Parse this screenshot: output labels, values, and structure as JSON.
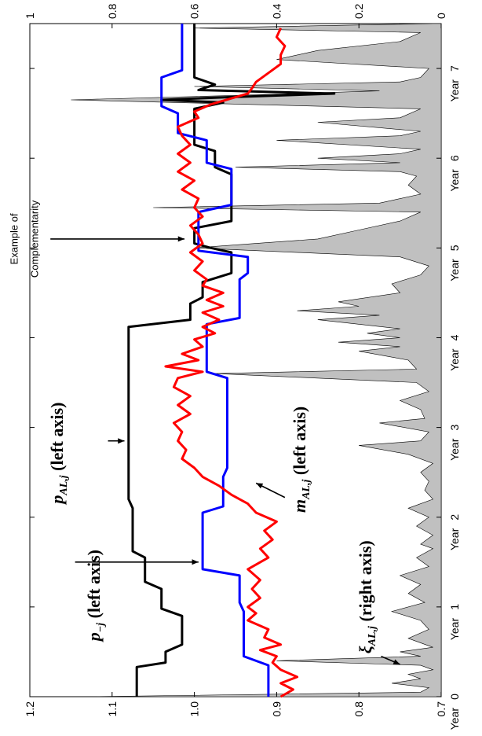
{
  "chart_data": {
    "type": "line",
    "orientation": "rotated-90-ccw",
    "x": {
      "ticks": [
        0,
        1,
        2,
        3,
        4,
        5,
        6,
        7
      ],
      "tick_labels": [
        "0",
        "1",
        "2",
        "3",
        "4",
        "5",
        "6",
        "7"
      ],
      "tick_prefix": "Year",
      "range": [
        0,
        7.5
      ]
    },
    "y_left": {
      "range": [
        0.7,
        1.2
      ],
      "ticks": [
        0.7,
        0.8,
        0.9,
        1.0,
        1.1,
        1.2
      ],
      "tick_labels": [
        "0.7",
        "0.8",
        "0.9",
        "1.0",
        "1.1",
        "1.2"
      ]
    },
    "y_right": {
      "range": [
        0,
        1
      ],
      "ticks": [
        0,
        0.2,
        0.4,
        0.6,
        0.8,
        1
      ],
      "tick_labels": [
        "0",
        "0.2",
        "0.4",
        "0.6",
        "0.8",
        "1"
      ]
    },
    "series": [
      {
        "id": "p_AL",
        "axis": "left",
        "color": "#000000",
        "style": "step-line",
        "points": [
          [
            0,
            1.07
          ],
          [
            0.33,
            1.07
          ],
          [
            0.38,
            1.035
          ],
          [
            0.5,
            1.035
          ],
          [
            0.58,
            1.015
          ],
          [
            0.9,
            1.015
          ],
          [
            0.98,
            1.04
          ],
          [
            1.2,
            1.04
          ],
          [
            1.28,
            1.06
          ],
          [
            1.55,
            1.06
          ],
          [
            1.62,
            1.075
          ],
          [
            2.1,
            1.075
          ],
          [
            2.2,
            1.08
          ],
          [
            3.0,
            1.08
          ],
          [
            4.12,
            1.08
          ],
          [
            4.2,
            1.005
          ],
          [
            4.38,
            1.005
          ],
          [
            4.45,
            0.99
          ],
          [
            4.62,
            0.99
          ],
          [
            4.72,
            0.955
          ],
          [
            4.95,
            0.955
          ],
          [
            5.0,
            0.98
          ],
          [
            5.05,
            1.0
          ],
          [
            5.22,
            1.0
          ],
          [
            5.3,
            0.955
          ],
          [
            5.82,
            0.955
          ],
          [
            5.9,
            0.975
          ],
          [
            6.08,
            0.975
          ],
          [
            6.15,
            1.0
          ],
          [
            6.55,
            1.0
          ],
          [
            6.62,
            0.965
          ],
          [
            6.65,
            1.04
          ],
          [
            6.68,
            0.96
          ],
          [
            6.72,
            0.83
          ],
          [
            6.76,
            0.995
          ],
          [
            6.82,
            0.975
          ],
          [
            6.9,
            1.0
          ],
          [
            7.5,
            1.0
          ]
        ]
      },
      {
        "id": "p_minus_j",
        "axis": "left",
        "color": "#0000ff",
        "style": "step-line",
        "points": [
          [
            0,
            0.91
          ],
          [
            0.35,
            0.91
          ],
          [
            0.45,
            0.94
          ],
          [
            0.95,
            0.94
          ],
          [
            1.05,
            0.945
          ],
          [
            1.35,
            0.945
          ],
          [
            1.42,
            0.99
          ],
          [
            2.05,
            0.99
          ],
          [
            2.12,
            0.965
          ],
          [
            2.45,
            0.965
          ],
          [
            2.55,
            0.96
          ],
          [
            3.55,
            0.96
          ],
          [
            3.62,
            0.985
          ],
          [
            4.15,
            0.985
          ],
          [
            4.22,
            0.945
          ],
          [
            4.65,
            0.945
          ],
          [
            4.72,
            0.935
          ],
          [
            4.9,
            0.935
          ],
          [
            4.97,
            0.995
          ],
          [
            5.4,
            0.995
          ],
          [
            5.48,
            0.955
          ],
          [
            5.88,
            0.955
          ],
          [
            5.95,
            0.985
          ],
          [
            6.2,
            0.985
          ],
          [
            6.28,
            1.02
          ],
          [
            6.5,
            1.02
          ],
          [
            6.58,
            1.04
          ],
          [
            6.9,
            1.04
          ],
          [
            6.98,
            1.015
          ],
          [
            7.5,
            1.015
          ]
        ]
      },
      {
        "id": "m_AL",
        "axis": "left",
        "color": "#ff0000",
        "style": "line",
        "points": [
          [
            0,
            0.895
          ],
          [
            0.08,
            0.88
          ],
          [
            0.15,
            0.895
          ],
          [
            0.22,
            0.875
          ],
          [
            0.3,
            0.895
          ],
          [
            0.38,
            0.905
          ],
          [
            0.45,
            0.9
          ],
          [
            0.52,
            0.92
          ],
          [
            0.58,
            0.895
          ],
          [
            0.66,
            0.915
          ],
          [
            0.75,
            0.91
          ],
          [
            0.85,
            0.935
          ],
          [
            0.93,
            0.925
          ],
          [
            1.0,
            0.935
          ],
          [
            1.1,
            0.92
          ],
          [
            1.2,
            0.93
          ],
          [
            1.3,
            0.92
          ],
          [
            1.42,
            0.935
          ],
          [
            1.55,
            0.91
          ],
          [
            1.65,
            0.92
          ],
          [
            1.75,
            0.905
          ],
          [
            1.85,
            0.915
          ],
          [
            1.95,
            0.9
          ],
          [
            2.05,
            0.925
          ],
          [
            2.15,
            0.935
          ],
          [
            2.25,
            0.955
          ],
          [
            2.35,
            0.97
          ],
          [
            2.45,
            0.99
          ],
          [
            2.55,
            1.0
          ],
          [
            2.65,
            1.015
          ],
          [
            2.75,
            1.01
          ],
          [
            2.85,
            1.02
          ],
          [
            2.95,
            1.015
          ],
          [
            3.05,
            1.025
          ],
          [
            3.15,
            1.005
          ],
          [
            3.25,
            1.02
          ],
          [
            3.35,
            1.005
          ],
          [
            3.45,
            1.025
          ],
          [
            3.55,
            1.02
          ],
          [
            3.62,
            0.99
          ],
          [
            3.68,
            1.035
          ],
          [
            3.75,
            0.995
          ],
          [
            3.82,
            1.015
          ],
          [
            3.9,
            0.99
          ],
          [
            3.98,
            1.0
          ],
          [
            4.05,
            0.975
          ],
          [
            4.12,
            0.99
          ],
          [
            4.2,
            0.97
          ],
          [
            4.28,
            0.99
          ],
          [
            4.35,
            0.965
          ],
          [
            4.42,
            0.985
          ],
          [
            4.5,
            0.965
          ],
          [
            4.58,
            0.99
          ],
          [
            4.65,
            0.985
          ],
          [
            4.75,
            1.0
          ],
          [
            4.85,
            0.99
          ],
          [
            4.95,
            1.005
          ],
          [
            5.05,
            0.99
          ],
          [
            5.15,
            0.995
          ],
          [
            5.25,
            1.005
          ],
          [
            5.35,
            0.99
          ],
          [
            5.45,
            1.0
          ],
          [
            5.55,
            0.995
          ],
          [
            5.65,
            1.015
          ],
          [
            5.75,
            1.0
          ],
          [
            5.85,
            1.02
          ],
          [
            5.95,
            1.005
          ],
          [
            6.05,
            1.02
          ],
          [
            6.15,
            1.005
          ],
          [
            6.25,
            1.015
          ],
          [
            6.35,
            1.02
          ],
          [
            6.45,
            0.995
          ],
          [
            6.52,
            1.0
          ],
          [
            6.6,
            0.98
          ],
          [
            6.68,
            0.95
          ],
          [
            6.72,
            0.935
          ],
          [
            6.78,
            0.93
          ],
          [
            6.85,
            0.925
          ],
          [
            6.95,
            0.91
          ],
          [
            7.05,
            0.895
          ],
          [
            7.15,
            0.895
          ],
          [
            7.25,
            0.89
          ],
          [
            7.35,
            0.9
          ],
          [
            7.45,
            0.895
          ]
        ]
      },
      {
        "id": "xi_AL",
        "axis": "right",
        "color": "#c0c0c0",
        "style": "area",
        "points": [
          [
            0,
            0.85
          ],
          [
            0.05,
            0.05
          ],
          [
            0.1,
            0.03
          ],
          [
            0.15,
            0.12
          ],
          [
            0.2,
            0.05
          ],
          [
            0.25,
            0.08
          ],
          [
            0.3,
            0.02
          ],
          [
            0.35,
            0.05
          ],
          [
            0.4,
            0.4
          ],
          [
            0.45,
            0.05
          ],
          [
            0.5,
            0.1
          ],
          [
            0.55,
            0.02
          ],
          [
            0.65,
            0.08
          ],
          [
            0.75,
            0.03
          ],
          [
            0.85,
            0.05
          ],
          [
            0.95,
            0.12
          ],
          [
            1.05,
            0.04
          ],
          [
            1.15,
            0.08
          ],
          [
            1.25,
            0.05
          ],
          [
            1.35,
            0.1
          ],
          [
            1.45,
            0.03
          ],
          [
            1.55,
            0.06
          ],
          [
            1.65,
            0.02
          ],
          [
            1.7,
            0.05
          ],
          [
            1.8,
            0.02
          ],
          [
            1.9,
            0.06
          ],
          [
            2.0,
            0.03
          ],
          [
            2.1,
            0.08
          ],
          [
            2.2,
            0.02
          ],
          [
            2.3,
            0.04
          ],
          [
            2.4,
            0.03
          ],
          [
            2.5,
            0.05
          ],
          [
            2.6,
            0.02
          ],
          [
            2.7,
            0.08
          ],
          [
            2.8,
            0.2
          ],
          [
            2.85,
            0.05
          ],
          [
            2.95,
            0.03
          ],
          [
            3.05,
            0.15
          ],
          [
            3.1,
            0.04
          ],
          [
            3.2,
            0.05
          ],
          [
            3.3,
            0.1
          ],
          [
            3.4,
            0.03
          ],
          [
            3.5,
            0.06
          ],
          [
            3.6,
            0.55
          ],
          [
            3.65,
            0.06
          ],
          [
            3.75,
            0.08
          ],
          [
            3.85,
            0.2
          ],
          [
            3.9,
            0.1
          ],
          [
            3.95,
            0.25
          ],
          [
            4.0,
            0.1
          ],
          [
            4.05,
            0.18
          ],
          [
            4.1,
            0.1
          ],
          [
            4.2,
            0.3
          ],
          [
            4.25,
            0.15
          ],
          [
            4.3,
            0.35
          ],
          [
            4.35,
            0.2
          ],
          [
            4.4,
            0.25
          ],
          [
            4.5,
            0.1
          ],
          [
            4.6,
            0.12
          ],
          [
            4.7,
            0.05
          ],
          [
            4.8,
            0.03
          ],
          [
            4.9,
            0.1
          ],
          [
            5.0,
            0.6
          ],
          [
            5.05,
            0.45
          ],
          [
            5.1,
            0.3
          ],
          [
            5.2,
            0.2
          ],
          [
            5.3,
            0.1
          ],
          [
            5.4,
            0.05
          ],
          [
            5.45,
            0.7
          ],
          [
            5.5,
            0.15
          ],
          [
            5.6,
            0.05
          ],
          [
            5.7,
            0.08
          ],
          [
            5.8,
            0.06
          ],
          [
            5.85,
            0.1
          ],
          [
            5.9,
            0.5
          ],
          [
            5.95,
            0.1
          ],
          [
            6.0,
            0.3
          ],
          [
            6.05,
            0.1
          ],
          [
            6.1,
            0.05
          ],
          [
            6.2,
            0.4
          ],
          [
            6.25,
            0.1
          ],
          [
            6.3,
            0.05
          ],
          [
            6.4,
            0.3
          ],
          [
            6.45,
            0.1
          ],
          [
            6.55,
            0.05
          ],
          [
            6.65,
            0.9
          ],
          [
            6.7,
            0.5
          ],
          [
            6.75,
            0.15
          ],
          [
            6.8,
            0.6
          ],
          [
            6.85,
            0.1
          ],
          [
            6.9,
            0.05
          ],
          [
            7.0,
            0.03
          ],
          [
            7.1,
            0.4
          ],
          [
            7.2,
            0.3
          ],
          [
            7.3,
            0.1
          ],
          [
            7.4,
            0.05
          ],
          [
            7.45,
            0.6
          ],
          [
            7.5,
            0.02
          ]
        ]
      }
    ],
    "annotations": {
      "p_minus_j": {
        "main": "p",
        "sub": "−j",
        "suffix": " (left axis)"
      },
      "p_AL": {
        "main": "p",
        "sub": "AL,j",
        "suffix": " (left axis)"
      },
      "m_AL": {
        "main": "m",
        "sub": "AL,j",
        "suffix": " (left axis)"
      },
      "xi_AL": {
        "main": "ξ",
        "sub": "AL,j",
        "suffix": " (right axis)"
      },
      "complementarity": {
        "line1": "Example of",
        "line2": "Complementarity"
      }
    }
  }
}
